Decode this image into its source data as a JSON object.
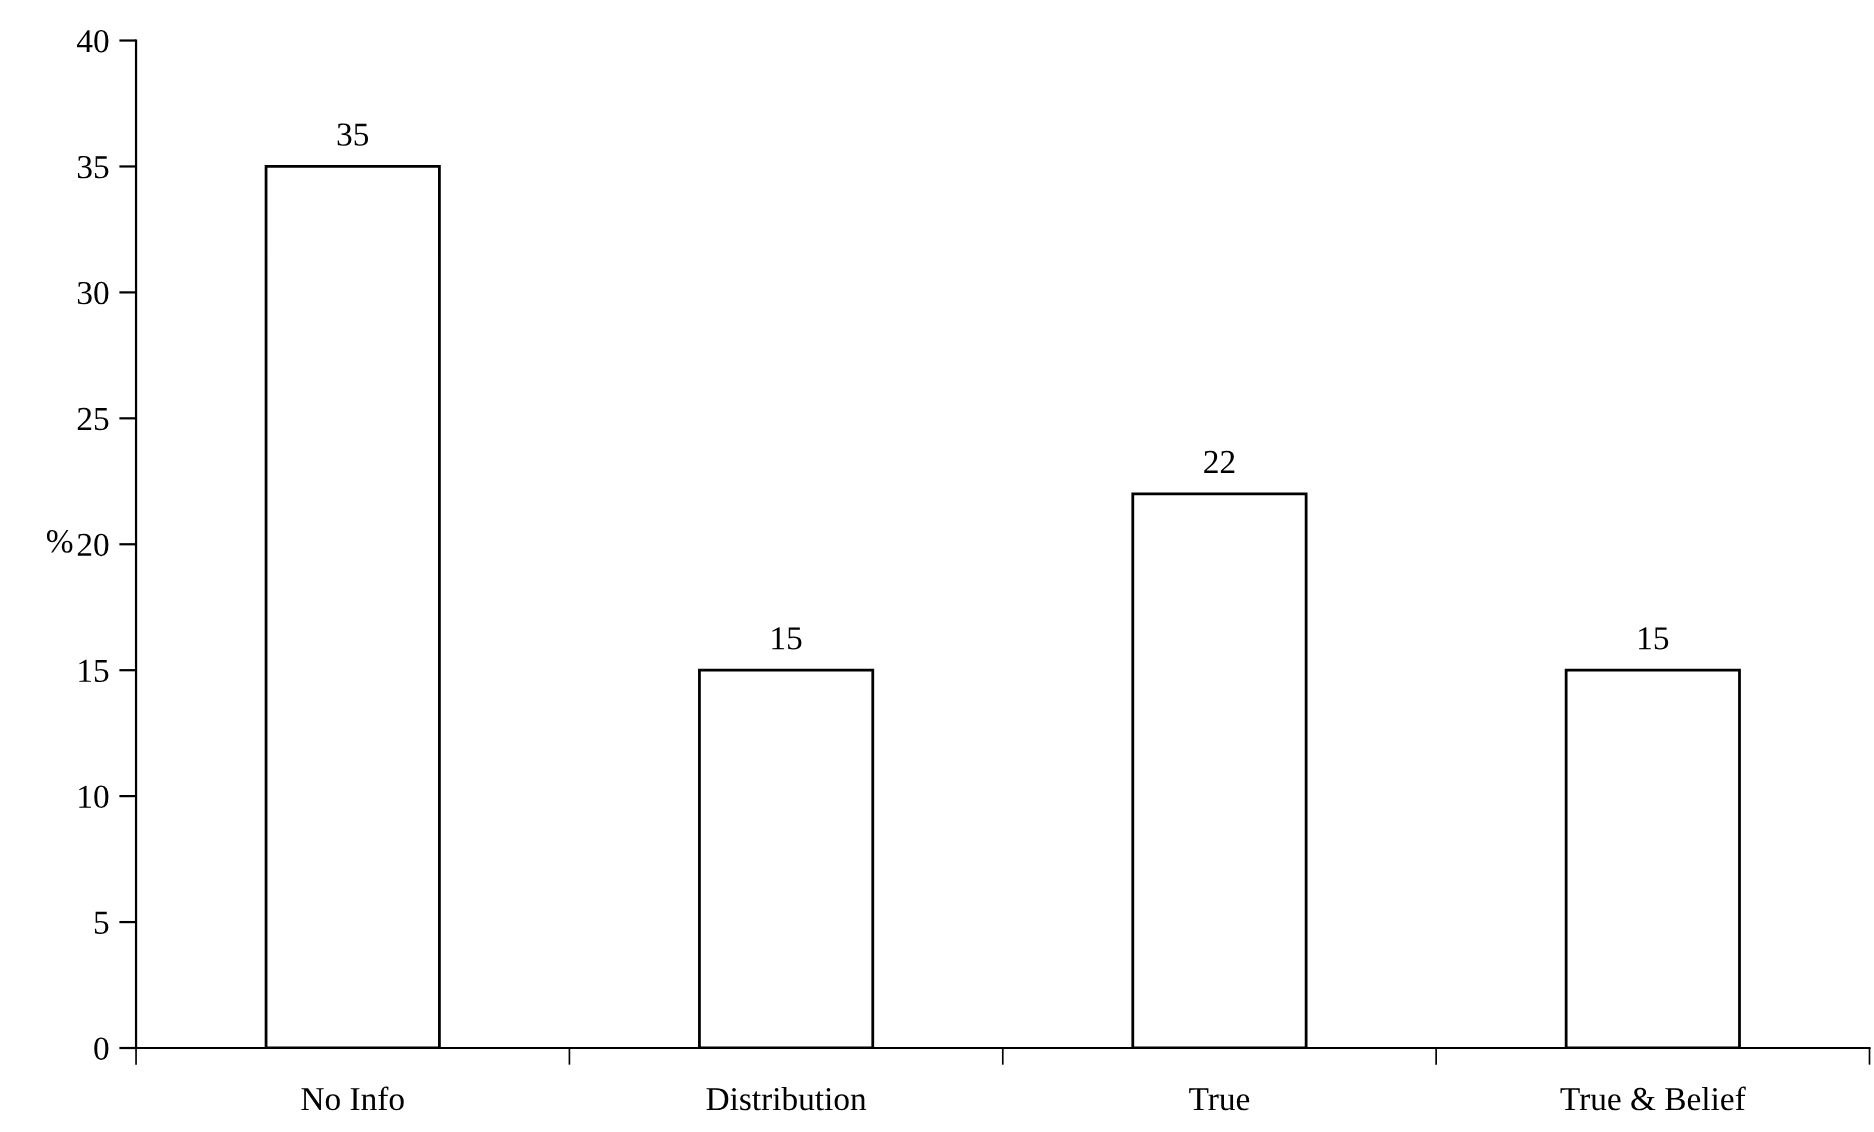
{
  "chart_data": {
    "type": "bar",
    "ylabel": "%",
    "categories": [
      "No Info",
      "Distribution",
      "True",
      "True & Belief"
    ],
    "values": [
      35,
      15,
      22,
      15
    ],
    "color": "#ffffff",
    "ylim": [
      0,
      40
    ],
    "yticks": [
      0,
      5,
      10,
      15,
      20,
      25,
      30,
      35,
      40
    ],
    "data_labels": true,
    "grid": false,
    "legend": false
  }
}
